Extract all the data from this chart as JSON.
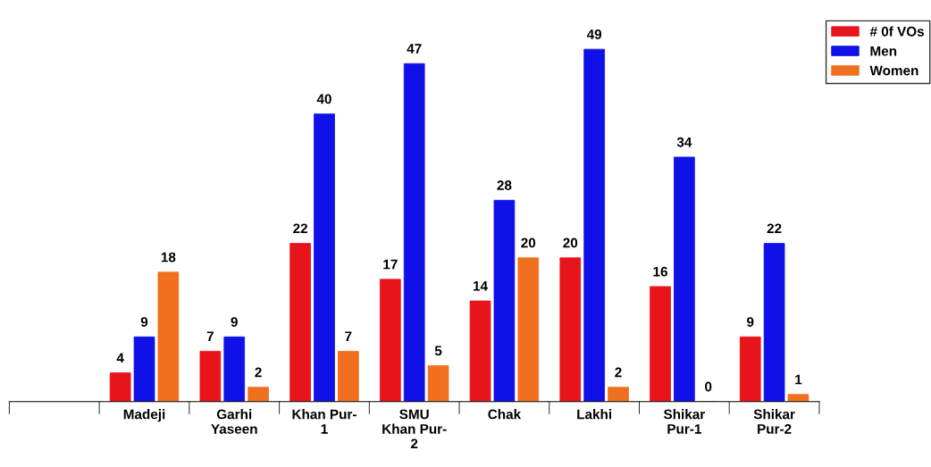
{
  "chart_data": {
    "type": "bar",
    "categories": [
      null,
      "Madeji",
      "Garhi\nYaseen",
      "Khan Pur-\n1",
      "SMU\nKhan Pur-\n2",
      "Chak",
      "Lakhi",
      "Shikar\nPur-1",
      "Shikar\nPur-2"
    ],
    "series": [
      {
        "name": "# 0f VOs",
        "color": "#e8141c",
        "values": [
          null,
          4,
          7,
          22,
          17,
          14,
          20,
          16,
          9
        ]
      },
      {
        "name": "Men",
        "color": "#1010e8",
        "values": [
          null,
          9,
          9,
          40,
          47,
          28,
          49,
          34,
          22
        ]
      },
      {
        "name": "Women",
        "color": "#f07020",
        "values": [
          null,
          18,
          2,
          7,
          5,
          20,
          2,
          0,
          1
        ]
      }
    ],
    "data_labels": true,
    "legend": "top right",
    "grid": false
  }
}
